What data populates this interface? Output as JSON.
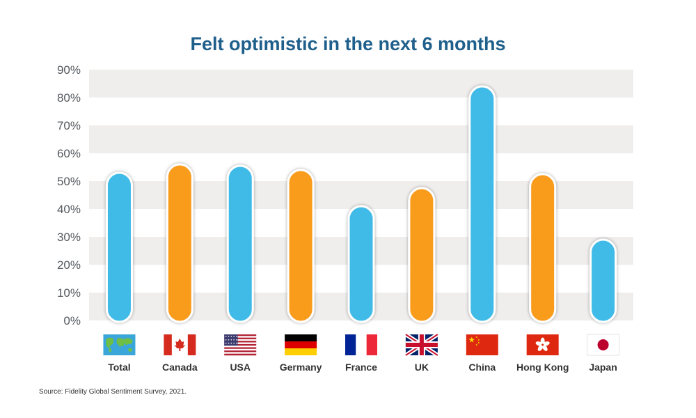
{
  "chart_data": {
    "type": "bar",
    "title": "Felt optimistic in the next 6 months",
    "categories": [
      "Total",
      "Canada",
      "USA",
      "Germany",
      "France",
      "UK",
      "China",
      "Hong Kong",
      "Japan"
    ],
    "values": [
      53,
      56,
      55.5,
      54,
      41,
      47.5,
      84,
      52.5,
      29
    ],
    "bar_colors": [
      "#3fbbe8",
      "#f99c1c",
      "#3fbbe8",
      "#f99c1c",
      "#3fbbe8",
      "#f99c1c",
      "#3fbbe8",
      "#f99c1c",
      "#3fbbe8"
    ],
    "category_icons": [
      "world-map-flag-icon",
      "canada-flag-icon",
      "usa-flag-icon",
      "germany-flag-icon",
      "france-flag-icon",
      "uk-flag-icon",
      "china-flag-icon",
      "hong-kong-flag-icon",
      "japan-flag-icon"
    ],
    "y_ticks": [
      "0%",
      "10%",
      "20%",
      "30%",
      "40%",
      "50%",
      "60%",
      "70%",
      "80%",
      "90%"
    ],
    "ylim": [
      0,
      90
    ],
    "grid": "alternating-bands",
    "xlabel": "",
    "ylabel": ""
  },
  "colors": {
    "title": "#1f5f8b",
    "band": "#efeeed",
    "blue_bar": "#3fbbe8",
    "orange_bar": "#f99c1c"
  },
  "source": "Source: Fidelity Global Sentiment Survey, 2021."
}
